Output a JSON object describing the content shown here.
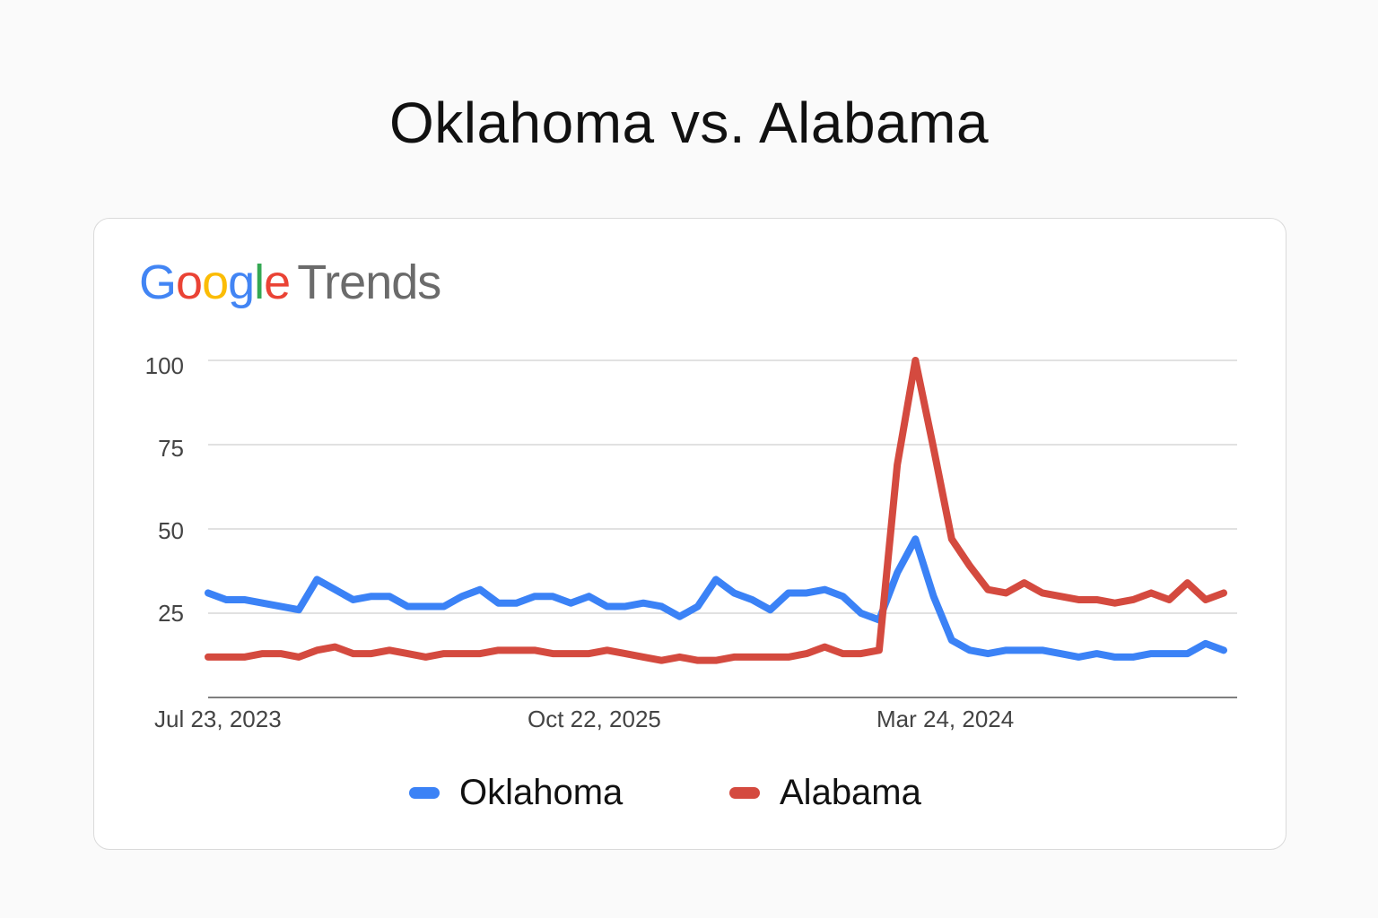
{
  "title": "Oklahoma vs. Alabama",
  "logo": {
    "google": [
      "G",
      "o",
      "o",
      "g",
      "l",
      "e"
    ],
    "trends": "Trends"
  },
  "chart_data": {
    "type": "line",
    "title": "Oklahoma vs. Alabama",
    "xlabel": "",
    "ylabel": "",
    "ylim": [
      0,
      100
    ],
    "y_ticks": [
      25,
      50,
      75,
      100
    ],
    "x_tick_labels": [
      "Jul 23, 2023",
      "Oct 22, 2025",
      "Mar 24, 2024"
    ],
    "grid": true,
    "legend": "bottom",
    "series": [
      {
        "name": "Oklahoma",
        "color": "#3b82f6",
        "values": [
          31,
          29,
          29,
          28,
          27,
          26,
          35,
          32,
          29,
          30,
          30,
          27,
          27,
          27,
          30,
          32,
          28,
          28,
          30,
          30,
          28,
          30,
          27,
          27,
          28,
          27,
          24,
          27,
          35,
          31,
          29,
          26,
          31,
          31,
          32,
          30,
          25,
          23,
          37,
          47,
          30,
          17,
          14,
          13,
          14,
          14,
          14,
          13,
          12,
          13,
          12,
          12,
          13,
          13,
          13,
          16,
          14
        ]
      },
      {
        "name": "Alabama",
        "color": "#d44a3f",
        "values": [
          12,
          12,
          12,
          13,
          13,
          12,
          14,
          15,
          13,
          13,
          14,
          13,
          12,
          13,
          13,
          13,
          14,
          14,
          14,
          13,
          13,
          13,
          14,
          13,
          12,
          11,
          12,
          11,
          11,
          12,
          12,
          12,
          12,
          13,
          15,
          13,
          13,
          14,
          69,
          100,
          74,
          47,
          39,
          32,
          31,
          34,
          31,
          30,
          29,
          29,
          28,
          29,
          31,
          29,
          34,
          29,
          31
        ]
      }
    ]
  }
}
